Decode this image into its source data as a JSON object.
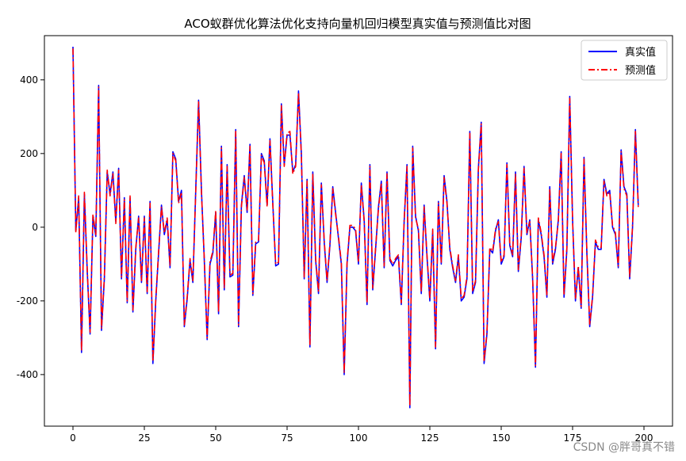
{
  "chart_data": {
    "type": "line",
    "title": "ACO蚁群优化算法优化支持向量机回归模型真实值与预测值比对图",
    "xlabel": "",
    "ylabel": "",
    "xlim": [
      -10,
      210
    ],
    "ylim": [
      -540,
      520
    ],
    "xticks": [
      0,
      25,
      50,
      75,
      100,
      125,
      150,
      175,
      200
    ],
    "yticks": [
      -400,
      -200,
      0,
      200,
      400
    ],
    "grid": false,
    "legend_position": "top-right",
    "series": [
      {
        "name": "真实值",
        "color": "#0000ff",
        "style": "solid",
        "values": [
          490,
          -10,
          80,
          -340,
          90,
          -120,
          -290,
          30,
          -25,
          385,
          -280,
          -140,
          150,
          90,
          150,
          15,
          160,
          -140,
          80,
          -205,
          80,
          -230,
          -60,
          30,
          -150,
          30,
          -180,
          70,
          -370,
          -200,
          -70,
          60,
          -20,
          20,
          -110,
          205,
          185,
          70,
          100,
          -270,
          -195,
          -90,
          -150,
          100,
          345,
          100,
          -90,
          -305,
          -100,
          -70,
          40,
          -235,
          220,
          -170,
          170,
          -135,
          -130,
          265,
          -270,
          60,
          140,
          40,
          225,
          -185,
          -45,
          -40,
          200,
          180,
          60,
          240,
          65,
          -105,
          -100,
          335,
          170,
          250,
          250,
          150,
          170,
          370,
          200,
          -140,
          130,
          -325,
          150,
          -90,
          -180,
          120,
          -40,
          -150,
          -50,
          110,
          40,
          -30,
          -100,
          -400,
          -100,
          0,
          0,
          -10,
          -100,
          120,
          20,
          -210,
          170,
          -170,
          -60,
          55,
          125,
          -110,
          150,
          -90,
          -105,
          -90,
          -80,
          -210,
          15,
          170,
          -490,
          220,
          30,
          -10,
          -180,
          60,
          -80,
          -200,
          -10,
          -330,
          70,
          -100,
          140,
          70,
          -60,
          -110,
          -150,
          -80,
          -200,
          -190,
          -140,
          260,
          -180,
          -150,
          160,
          285,
          -370,
          -290,
          -60,
          -70,
          -10,
          20,
          -100,
          -80,
          175,
          -50,
          -80,
          150,
          -120,
          -30,
          165,
          -20,
          20,
          -140,
          -380,
          20,
          -20,
          -80,
          -190,
          110,
          -100,
          -60,
          20,
          205,
          -190,
          -60,
          355,
          20,
          -200,
          -110,
          -220,
          190,
          -70,
          -270,
          -190,
          -40,
          -60,
          -60,
          130,
          90,
          100,
          0,
          -20,
          -110,
          210,
          110,
          90,
          -140,
          0,
          265,
          60
        ]
      },
      {
        "name": "预测值",
        "color": "#ff0000",
        "style": "dashdot",
        "values": [
          485,
          -15,
          85,
          -335,
          95,
          -115,
          -285,
          35,
          -20,
          380,
          -275,
          -135,
          155,
          85,
          145,
          10,
          155,
          -135,
          75,
          -200,
          85,
          -225,
          -55,
          25,
          -145,
          25,
          -175,
          65,
          -365,
          -195,
          -65,
          55,
          -15,
          25,
          -105,
          200,
          180,
          65,
          95,
          -265,
          -190,
          -85,
          -145,
          95,
          340,
          95,
          -85,
          -300,
          -95,
          -65,
          45,
          -230,
          215,
          -165,
          165,
          -130,
          -125,
          260,
          -265,
          55,
          135,
          45,
          220,
          -180,
          -40,
          -35,
          195,
          175,
          55,
          235,
          60,
          -100,
          -95,
          330,
          165,
          255,
          260,
          145,
          165,
          365,
          195,
          -135,
          125,
          -320,
          145,
          -85,
          -175,
          115,
          -35,
          -145,
          -45,
          105,
          35,
          -25,
          -95,
          -395,
          -95,
          5,
          5,
          -5,
          -95,
          115,
          15,
          -205,
          165,
          -165,
          -55,
          50,
          120,
          -105,
          145,
          -85,
          -100,
          -85,
          -75,
          -205,
          20,
          165,
          -485,
          215,
          25,
          -5,
          -175,
          55,
          -75,
          -195,
          -5,
          -325,
          65,
          -95,
          135,
          65,
          -55,
          -105,
          -145,
          -75,
          -195,
          -185,
          -135,
          255,
          -175,
          -145,
          155,
          280,
          -365,
          -285,
          -55,
          -65,
          -5,
          15,
          -95,
          -75,
          170,
          -45,
          -75,
          145,
          -115,
          -25,
          160,
          -15,
          15,
          -135,
          -375,
          25,
          -15,
          -75,
          -185,
          105,
          -95,
          -55,
          15,
          200,
          -185,
          -55,
          350,
          15,
          -195,
          -105,
          -215,
          185,
          -65,
          -265,
          -185,
          -35,
          -55,
          -55,
          125,
          85,
          95,
          5,
          -15,
          -105,
          205,
          105,
          85,
          -135,
          5,
          260,
          55
        ]
      }
    ]
  },
  "watermark": "CSDN @胖哥真不错"
}
